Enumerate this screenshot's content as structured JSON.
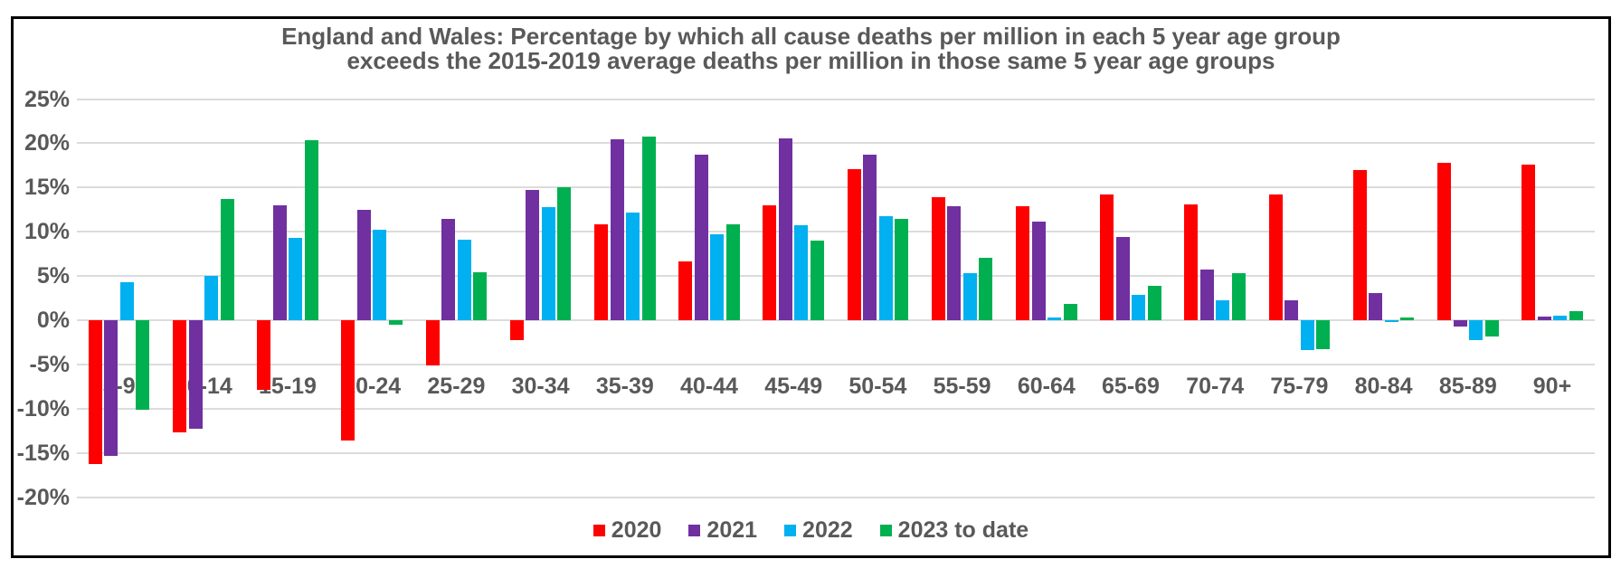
{
  "title_line1": "England and Wales: Percentage by which all cause deaths per million in each 5 year age group",
  "title_line2": "exceeds the 2015-2019 average deaths per million in those same 5 year age groups",
  "colors": {
    "series_2020": "#FF0000",
    "series_2021": "#7030A0",
    "series_2022": "#00B0F0",
    "series_2023": "#00B050",
    "text_gray": "#595959",
    "gridline": "#DCDCDC",
    "border": "#000000"
  },
  "chart_data": {
    "type": "bar",
    "title": "England and Wales: Percentage by which all cause deaths per million in each 5 year age group exceeds the 2015-2019 average deaths per million in those same 5 year age groups",
    "categories": [
      "5-9",
      "10-14",
      "15-19",
      "20-24",
      "25-29",
      "30-34",
      "35-39",
      "40-44",
      "45-49",
      "50-54",
      "55-59",
      "60-64",
      "65-69",
      "70-74",
      "75-79",
      "80-84",
      "85-89",
      "90+"
    ],
    "series": [
      {
        "name": "2020",
        "color": "#FF0000",
        "values": [
          -16.3,
          -12.7,
          -7.9,
          -13.6,
          -5.1,
          -2.3,
          10.8,
          6.6,
          13.0,
          17.1,
          13.9,
          12.9,
          14.2,
          13.1,
          14.2,
          17.0,
          17.8,
          17.6
        ]
      },
      {
        "name": "2021",
        "color": "#7030A0",
        "values": [
          -15.3,
          -12.3,
          13.0,
          12.5,
          11.5,
          14.7,
          20.5,
          18.7,
          20.6,
          18.7,
          12.9,
          11.1,
          9.4,
          5.7,
          2.2,
          3.1,
          -0.7,
          0.4
        ]
      },
      {
        "name": "2022",
        "color": "#00B0F0",
        "values": [
          4.3,
          5.0,
          9.3,
          10.2,
          9.1,
          12.8,
          12.2,
          9.7,
          10.7,
          11.8,
          5.3,
          0.3,
          2.9,
          2.2,
          -3.4,
          -0.2,
          -2.3,
          0.5
        ]
      },
      {
        "name": "2023 to date",
        "color": "#00B050",
        "values": [
          -10.1,
          13.7,
          20.3,
          -0.5,
          5.4,
          15.0,
          20.8,
          10.8,
          9.0,
          11.5,
          7.1,
          1.8,
          3.9,
          5.3,
          -3.3,
          0.3,
          -1.8,
          1.0
        ]
      }
    ],
    "xlabel": "",
    "ylabel": "",
    "yticks": [
      25,
      20,
      15,
      10,
      5,
      0,
      -5,
      -10,
      -15,
      -20
    ],
    "ytick_suffix": "%",
    "ylim": [
      -20,
      25
    ],
    "grid": true,
    "legend_position": "bottom-center"
  }
}
